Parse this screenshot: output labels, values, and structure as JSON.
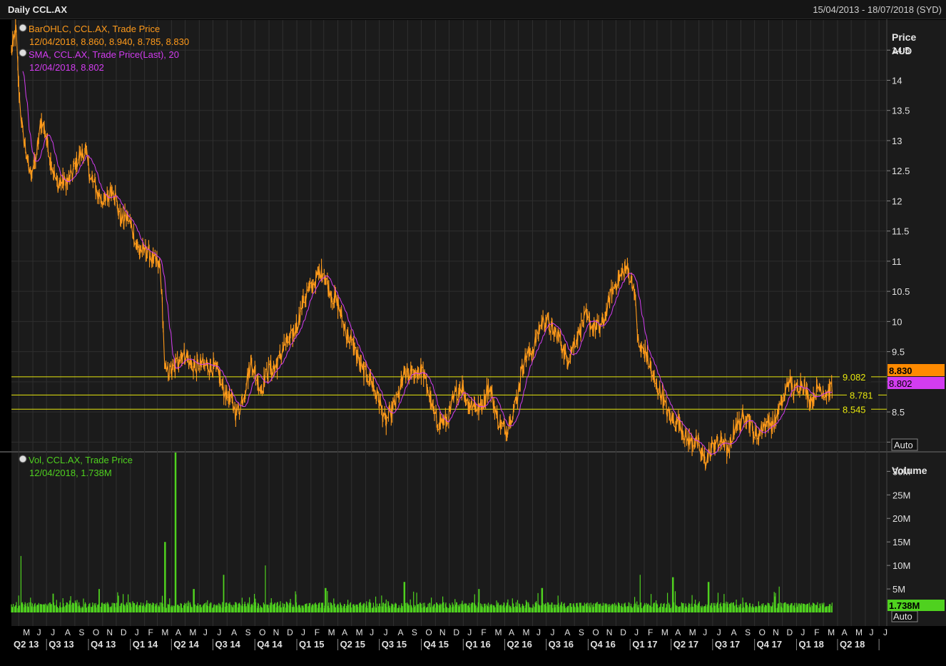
{
  "header": {
    "title": "Daily CCL.AX",
    "date_range": "15/04/2013 - 18/07/2018 (SYD)"
  },
  "colors": {
    "background": "#000000",
    "panel": "#1b1b1b",
    "grid": "#333333",
    "price": "#ff9a1a",
    "sma": "#d23cf0",
    "volume": "#4fd11f",
    "hline": "#e7e70e",
    "axis_text": "#e0e0e0"
  },
  "legend": {
    "price": {
      "line1": "BarOHLC, CCL.AX, Trade Price",
      "line2": "12/04/2018, 8.860, 8.940, 8.785, 8.830"
    },
    "sma": {
      "line1": "SMA, CCL.AX, Trade Price(Last),  20",
      "line2": "12/04/2018, 8.802"
    },
    "volume": {
      "line1": "Vol, CCL.AX, Trade Price",
      "line2": "12/04/2018, 1.738M"
    }
  },
  "price_axis": {
    "title": "Price",
    "unit": "AUD",
    "ticks": [
      "14.5",
      "14",
      "13.5",
      "13",
      "12.5",
      "12",
      "11.5",
      "11",
      "10.5",
      "10",
      "9.5",
      "9",
      "8.5",
      "8"
    ],
    "auto_label": "Auto"
  },
  "volume_axis": {
    "title": "Volume",
    "ticks": [
      "30M",
      "25M",
      "20M",
      "15M",
      "10M",
      "5M"
    ],
    "auto_label": "Auto"
  },
  "price_badges": {
    "last": "8.830",
    "sma": "8.802",
    "volume": "1.738M"
  },
  "hlines": [
    "9.082",
    "8.781",
    "8.545"
  ],
  "x_axis": {
    "months": [
      "M",
      "J",
      "J",
      "A",
      "S",
      "O",
      "N",
      "D",
      "J",
      "F",
      "M",
      "A",
      "M",
      "J",
      "J",
      "A",
      "S",
      "O",
      "N",
      "D",
      "J",
      "F",
      "M",
      "A",
      "M",
      "J",
      "J",
      "A",
      "S",
      "O",
      "N",
      "D",
      "J",
      "F",
      "M",
      "A",
      "M",
      "J",
      "J",
      "A",
      "S",
      "O",
      "N",
      "D",
      "J",
      "F",
      "M",
      "A",
      "M",
      "J",
      "J",
      "A",
      "S",
      "O",
      "N",
      "D",
      "J",
      "F",
      "M",
      "A",
      "M",
      "J",
      "J"
    ],
    "quarters": [
      "Q2 13",
      "Q3 13",
      "Q4 13",
      "Q1 14",
      "Q2 14",
      "Q3 14",
      "Q4 14",
      "Q1 15",
      "Q2 15",
      "Q3 15",
      "Q4 15",
      "Q1 16",
      "Q2 16",
      "Q3 16",
      "Q4 16",
      "Q1 17",
      "Q2 17",
      "Q3 17",
      "Q4 17",
      "Q1 18",
      "Q2 18"
    ]
  },
  "chart_data": {
    "type": "line",
    "price_ylim": [
      7.85,
      15.0
    ],
    "volume_ylim": [
      0,
      34
    ],
    "volume_unit": "M",
    "sma_period": 20,
    "horizontal_lines": [
      9.082,
      8.781,
      8.545
    ],
    "price_keypoints": [
      [
        "2013-04-15",
        14.4
      ],
      [
        "2013-04-25",
        14.9
      ],
      [
        "2013-05-02",
        13.8
      ],
      [
        "2013-05-10",
        13.1
      ],
      [
        "2013-05-25",
        12.4
      ],
      [
        "2013-06-08",
        12.8
      ],
      [
        "2013-06-20",
        13.3
      ],
      [
        "2013-07-05",
        12.9
      ],
      [
        "2013-07-25",
        12.25
      ],
      [
        "2013-08-12",
        12.3
      ],
      [
        "2013-09-05",
        12.6
      ],
      [
        "2013-09-25",
        12.9
      ],
      [
        "2013-10-05",
        12.4
      ],
      [
        "2013-10-20",
        12.1
      ],
      [
        "2013-11-10",
        12.05
      ],
      [
        "2013-11-25",
        12.15
      ],
      [
        "2013-12-10",
        11.75
      ],
      [
        "2013-12-25",
        11.7
      ],
      [
        "2014-01-15",
        11.3
      ],
      [
        "2014-02-05",
        11.1
      ],
      [
        "2014-02-25",
        11.05
      ],
      [
        "2014-03-08",
        10.9
      ],
      [
        "2014-03-18",
        9.1
      ],
      [
        "2014-04-10",
        9.3
      ],
      [
        "2014-05-05",
        9.45
      ],
      [
        "2014-05-25",
        9.2
      ],
      [
        "2014-06-20",
        9.35
      ],
      [
        "2014-07-10",
        9.1
      ],
      [
        "2014-07-30",
        8.85
      ],
      [
        "2014-08-20",
        8.45
      ],
      [
        "2014-09-10",
        8.9
      ],
      [
        "2014-09-25",
        9.3
      ],
      [
        "2014-10-15",
        8.9
      ],
      [
        "2014-11-05",
        9.2
      ],
      [
        "2014-11-25",
        9.4
      ],
      [
        "2014-12-15",
        9.7
      ],
      [
        "2015-01-05",
        10.0
      ],
      [
        "2015-01-25",
        10.55
      ],
      [
        "2015-02-15",
        10.7
      ],
      [
        "2015-03-02",
        10.85
      ],
      [
        "2015-03-20",
        10.4
      ],
      [
        "2015-04-10",
        10.1
      ],
      [
        "2015-05-01",
        9.6
      ],
      [
        "2015-05-20",
        9.3
      ],
      [
        "2015-06-10",
        9.0
      ],
      [
        "2015-07-01",
        8.75
      ],
      [
        "2015-07-15",
        8.25
      ],
      [
        "2015-08-05",
        8.7
      ],
      [
        "2015-08-25",
        9.05
      ],
      [
        "2015-09-15",
        9.2
      ],
      [
        "2015-10-05",
        9.1
      ],
      [
        "2015-10-20",
        8.8
      ],
      [
        "2015-11-05",
        8.25
      ],
      [
        "2015-11-20",
        8.35
      ],
      [
        "2015-12-10",
        8.65
      ],
      [
        "2015-12-30",
        8.95
      ],
      [
        "2016-01-15",
        8.6
      ],
      [
        "2016-02-05",
        8.55
      ],
      [
        "2016-02-25",
        8.9
      ],
      [
        "2016-03-15",
        8.45
      ],
      [
        "2016-04-05",
        8.15
      ],
      [
        "2016-04-20",
        8.55
      ],
      [
        "2016-05-10",
        9.2
      ],
      [
        "2016-05-25",
        9.45
      ],
      [
        "2016-06-15",
        9.85
      ],
      [
        "2016-07-05",
        10.05
      ],
      [
        "2016-07-25",
        9.75
      ],
      [
        "2016-08-15",
        9.4
      ],
      [
        "2016-09-05",
        9.65
      ],
      [
        "2016-09-25",
        10.15
      ],
      [
        "2016-10-10",
        9.85
      ],
      [
        "2016-10-25",
        9.9
      ],
      [
        "2016-11-15",
        10.25
      ],
      [
        "2016-12-05",
        10.75
      ],
      [
        "2016-12-20",
        10.85
      ],
      [
        "2017-01-10",
        10.6
      ],
      [
        "2017-01-20",
        9.6
      ],
      [
        "2017-02-15",
        9.25
      ],
      [
        "2017-03-05",
        8.85
      ],
      [
        "2017-03-20",
        8.55
      ],
      [
        "2017-04-10",
        8.35
      ],
      [
        "2017-05-01",
        8.15
      ],
      [
        "2017-05-25",
        7.95
      ],
      [
        "2017-06-15",
        7.75
      ],
      [
        "2017-07-05",
        7.9
      ],
      [
        "2017-07-25",
        8.1
      ],
      [
        "2017-08-05",
        7.75
      ],
      [
        "2017-08-20",
        8.3
      ],
      [
        "2017-09-10",
        8.45
      ],
      [
        "2017-09-30",
        8.15
      ],
      [
        "2017-10-20",
        8.2
      ],
      [
        "2017-11-10",
        8.35
      ],
      [
        "2017-11-25",
        8.55
      ],
      [
        "2017-12-05",
        8.65
      ],
      [
        "2017-12-15",
        9.1
      ],
      [
        "2017-12-28",
        8.85
      ],
      [
        "2018-01-15",
        8.95
      ],
      [
        "2018-02-05",
        8.7
      ],
      [
        "2018-02-20",
        8.85
      ],
      [
        "2018-03-05",
        8.9
      ],
      [
        "2018-03-20",
        8.83
      ]
    ],
    "volume_spikes": [
      [
        "2013-05-05",
        12
      ],
      [
        "2013-07-15",
        4
      ],
      [
        "2013-10-25",
        5
      ],
      [
        "2014-03-18",
        15
      ],
      [
        "2014-04-10",
        34
      ],
      [
        "2014-05-20",
        5
      ],
      [
        "2014-07-25",
        8
      ],
      [
        "2014-10-25",
        10
      ],
      [
        "2014-12-28",
        4.5
      ],
      [
        "2015-03-05",
        5.2
      ],
      [
        "2015-08-25",
        6.5
      ],
      [
        "2016-02-05",
        5
      ],
      [
        "2016-06-22",
        5.2
      ],
      [
        "2017-01-22",
        8
      ],
      [
        "2017-04-05",
        7.5
      ],
      [
        "2017-06-22",
        6.5
      ],
      [
        "2017-11-25",
        5.5
      ]
    ]
  }
}
